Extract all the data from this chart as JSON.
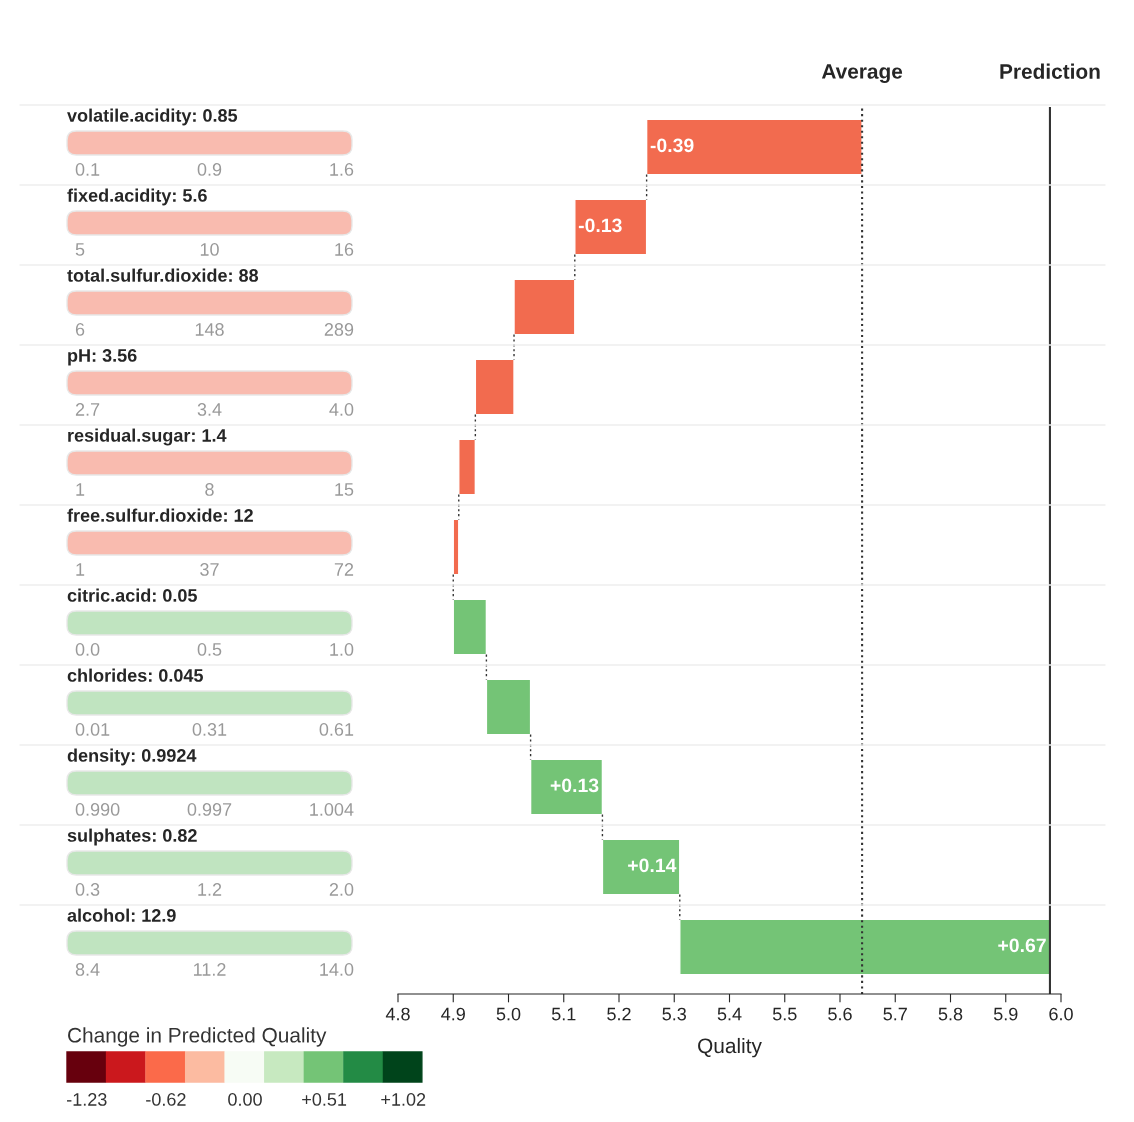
{
  "chart_data": [
    {
      "type": "bar",
      "orientation": "horizontal",
      "categories": [
        "volatile.acidity: 0.85",
        "fixed.acidity: 5.6",
        "total.sulfur.dioxide: 88",
        "pH: 3.56",
        "residual.sugar: 1.4",
        "free.sulfur.dioxide: 12",
        "citric.acid: 0.05",
        "chlorides: 0.045",
        "density: 0.9924",
        "sulphates: 0.82",
        "alcohol: 12.9"
      ],
      "values": [
        -0.39,
        -0.13,
        -0.11,
        -0.07,
        -0.03,
        -0.01,
        0.06,
        0.08,
        0.13,
        0.14,
        0.67
      ],
      "base": [
        5.64,
        5.25,
        5.12,
        5.01,
        4.94,
        4.91,
        4.9,
        4.96,
        5.04,
        5.17,
        5.31
      ],
      "colors": [
        "#f26b4f",
        "#f26b4f",
        "#f26b4f",
        "#f26b4f",
        "#f26b4f",
        "#f26b4f",
        "#74c476",
        "#74c476",
        "#74c476",
        "#74c476",
        "#74c476"
      ],
      "value_labels": [
        "-0.39",
        "-0.13",
        null,
        null,
        null,
        null,
        null,
        null,
        "+0.13",
        "+0.14",
        "+0.67"
      ],
      "xlim": [
        4.8,
        6.0
      ],
      "xticks": [
        4.8,
        4.9,
        {
          "value": 5.0,
          "label": "5.0"
        },
        5.1,
        5.2,
        5.3,
        5.4,
        5.5,
        5.6,
        5.7,
        5.8,
        5.9,
        {
          "value": 6.0,
          "label": "6.0"
        }
      ],
      "xlabel": "Quality",
      "tick_labels": "x",
      "ref_lines": [
        {
          "axis": "x",
          "value": 5.64,
          "label": "Average",
          "line_style": "dotted",
          "color": "#333333"
        },
        {
          "axis": "x",
          "value": 5.98,
          "label": "Prediction",
          "line_style": "solid",
          "color": "#333333"
        }
      ],
      "annotations": [
        "0.1",
        "0.9",
        "1.6",
        "5",
        "10",
        "16",
        "6",
        "148",
        "289",
        "2.7",
        "3.4",
        "4.0",
        "1",
        "8",
        "15",
        "1",
        "37",
        "72",
        "0.0",
        "0.5",
        "1.0",
        "0.01",
        "0.31",
        "0.61",
        "0.990",
        "0.997",
        "1.004",
        "0.3",
        "1.2",
        "2.0",
        "8.4",
        "11.2",
        "14.0"
      ]
    },
    {
      "type": "other",
      "title": "Change in Predicted Quality",
      "colors": [
        "#67000d",
        "#cb181d",
        "#fb6a4a",
        "#fcbba1",
        "#f7fcf5",
        "#c7e9c0",
        "#74c476",
        "#238b45",
        "#00441b"
      ],
      "annotations": [
        "-1.23",
        "-0.62",
        "0.00",
        "+0.51",
        "+1.02"
      ]
    }
  ]
}
